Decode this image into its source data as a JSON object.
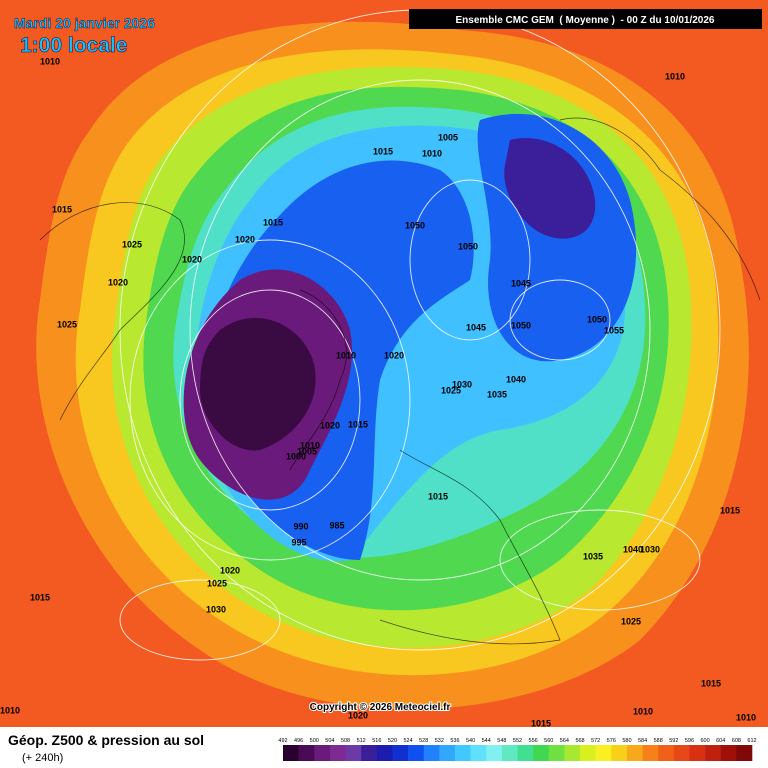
{
  "header": {
    "date": "Mardi 20 janvier 2026",
    "time": "1:00 locale",
    "model": "Ensemble CMC GEM  ( Moyenne )  - 00 Z du 10/01/2026"
  },
  "copyright": "Copyright © 2026 Meteociel.fr",
  "footer": {
    "title": "Géop. Z500 & pression au sol",
    "lead": "(+ 240h)"
  },
  "isobar_labels": [
    1010,
    1010,
    1005,
    1015,
    1010,
    1015,
    1015,
    1050,
    1025,
    1020,
    1050,
    1020,
    1020,
    1045,
    1025,
    1045,
    1050,
    1050,
    1055,
    1010,
    1020,
    1040,
    1030,
    1025,
    1035,
    1020,
    1015,
    1010,
    1005,
    1000,
    1015,
    1015,
    990,
    985,
    995,
    1035,
    1040,
    1030,
    1020,
    1025,
    1015,
    1030,
    1025,
    1015,
    1010,
    1020,
    1010,
    1010,
    1015
  ],
  "legend": {
    "labels": [
      492,
      496,
      500,
      504,
      508,
      512,
      516,
      520,
      524,
      528,
      532,
      536,
      540,
      544,
      548,
      552,
      556,
      560,
      564,
      568,
      572,
      576,
      580,
      584,
      588,
      592,
      596,
      600,
      604,
      608,
      612
    ],
    "colors": [
      "#2a0030",
      "#4a0a55",
      "#6a1a7a",
      "#7e2a92",
      "#6b3aa8",
      "#3a1e9a",
      "#1c1cb0",
      "#1030d0",
      "#1050f0",
      "#2080ff",
      "#30a8ff",
      "#40c8ff",
      "#60e0ff",
      "#80f0f0",
      "#60e8c0",
      "#40e090",
      "#40d850",
      "#70e040",
      "#a8e830",
      "#d8f020",
      "#f8f020",
      "#f8d018",
      "#f8a818",
      "#f88018",
      "#f06018",
      "#e84818",
      "#d83010",
      "#c02010",
      "#a01008",
      "#800808"
    ]
  }
}
